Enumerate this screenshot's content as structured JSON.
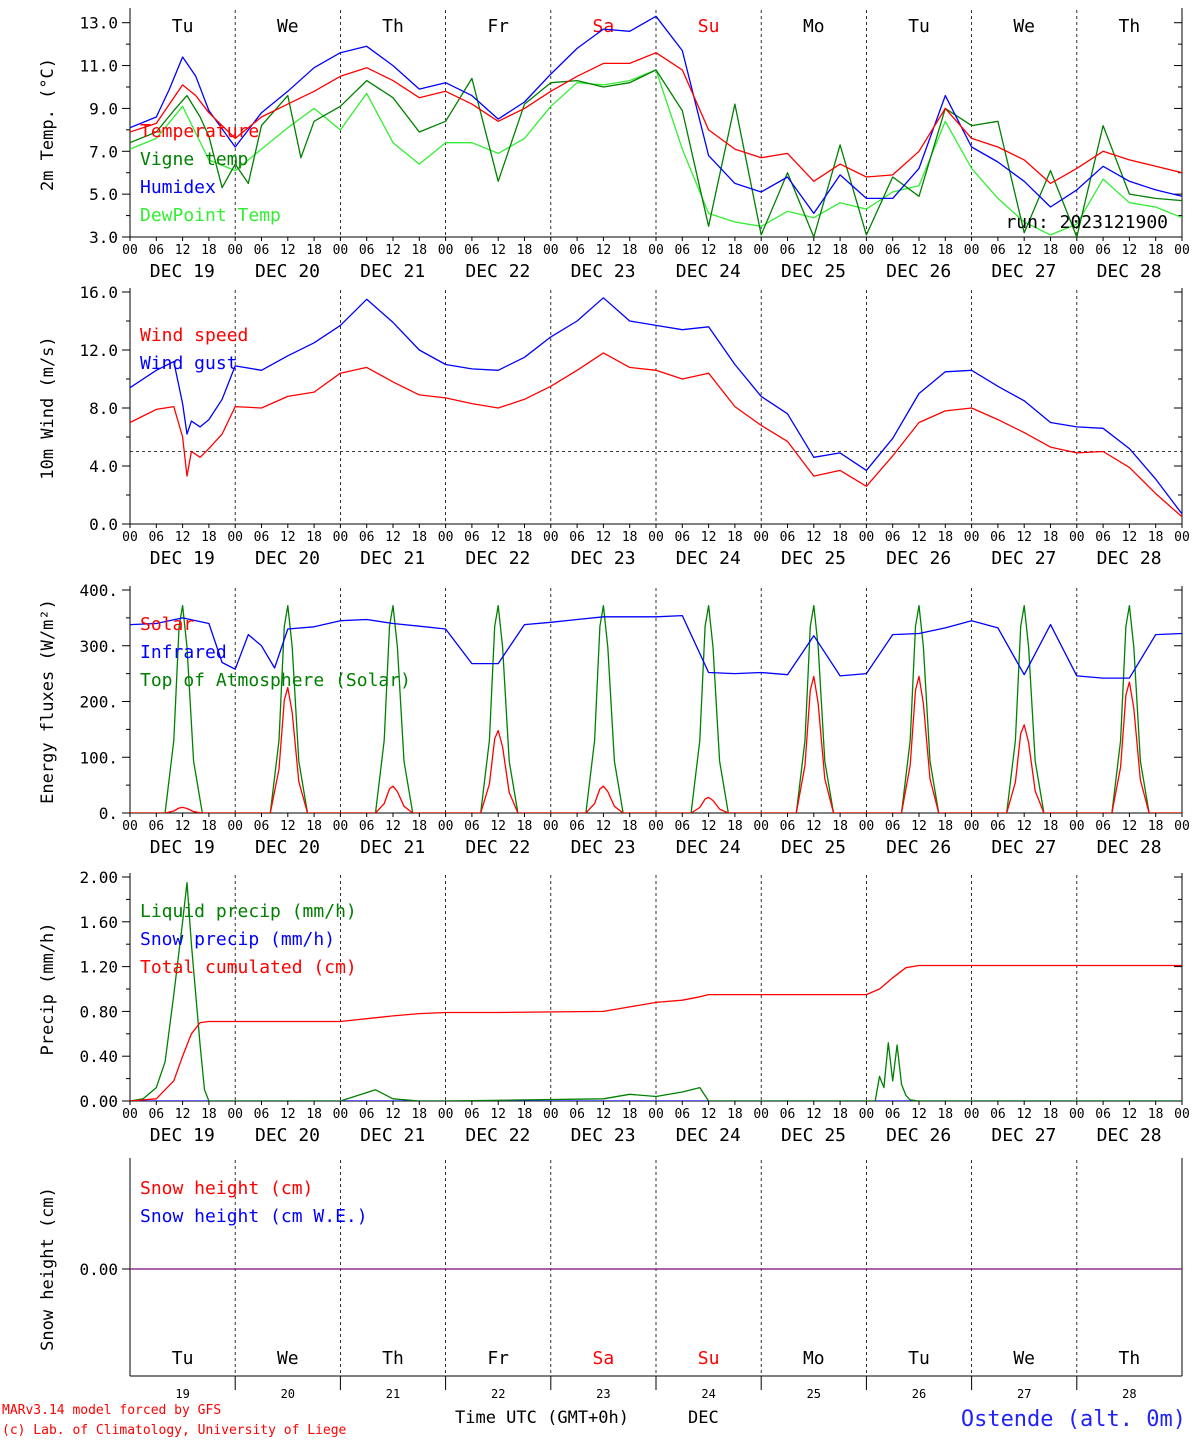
{
  "page": {
    "run_label": "run: 2023121900",
    "footer": {
      "model": "MARv3.14 model forced by GFS",
      "copyright": "(c) Lab. of Climatology, University of Liege",
      "xlabel": "Time UTC (GMT+0h)",
      "month": "DEC",
      "station": "Ostende (alt. 0m)"
    },
    "days": [
      {
        "date": "DEC 19",
        "dow": "Tu",
        "num": "19",
        "weekend": false
      },
      {
        "date": "DEC 20",
        "dow": "We",
        "num": "20",
        "weekend": false
      },
      {
        "date": "DEC 21",
        "dow": "Th",
        "num": "21",
        "weekend": false
      },
      {
        "date": "DEC 22",
        "dow": "Fr",
        "num": "22",
        "weekend": false
      },
      {
        "date": "DEC 23",
        "dow": "Sa",
        "num": "23",
        "weekend": true
      },
      {
        "date": "DEC 24",
        "dow": "Su",
        "num": "24",
        "weekend": true
      },
      {
        "date": "DEC 25",
        "dow": "Mo",
        "num": "25",
        "weekend": false
      },
      {
        "date": "DEC 26",
        "dow": "Tu",
        "num": "26",
        "weekend": false
      },
      {
        "date": "DEC 27",
        "dow": "We",
        "num": "27",
        "weekend": false
      },
      {
        "date": "DEC 28",
        "dow": "Th",
        "num": "28",
        "weekend": false
      }
    ],
    "hour_ticks": [
      "00",
      "06",
      "12",
      "18"
    ],
    "end_tick": "00",
    "weekend_color": "#ff0000"
  },
  "chart_data": [
    {
      "id": "temp",
      "type": "line",
      "ylabel": "2m Temp. (°C)",
      "ylim": [
        3,
        13.5
      ],
      "ticks": [
        {
          "v": 3,
          "label": "3.0"
        },
        {
          "v": 5,
          "label": "5.0"
        },
        {
          "v": 7,
          "label": "7.0"
        },
        {
          "v": 9,
          "label": "9.0"
        },
        {
          "v": 11,
          "label": "11.0"
        },
        {
          "v": 13,
          "label": "13.0"
        }
      ],
      "x_unit": "hours since DEC 19 00 UTC",
      "series": [
        {
          "name": "Temperature",
          "color": "#ff0000",
          "x": [
            0,
            6,
            9,
            12,
            15,
            18,
            24,
            30,
            36,
            42,
            48,
            54,
            60,
            66,
            72,
            78,
            84,
            90,
            96,
            102,
            108,
            114,
            120,
            126,
            132,
            138,
            144,
            150,
            156,
            162,
            168,
            174,
            180,
            186,
            192,
            198,
            204,
            210,
            216,
            222,
            228,
            234,
            240
          ],
          "values": [
            7.9,
            8.3,
            9.2,
            10.1,
            9.6,
            8.8,
            7.6,
            8.6,
            9.2,
            9.8,
            10.5,
            10.9,
            10.3,
            9.5,
            9.8,
            9.2,
            8.4,
            9.0,
            9.8,
            10.5,
            11.1,
            11.1,
            11.6,
            10.8,
            8.0,
            7.1,
            6.7,
            6.9,
            5.6,
            6.4,
            5.8,
            5.9,
            7.0,
            9.0,
            7.6,
            7.2,
            6.6,
            5.5,
            6.2,
            7.0,
            6.6,
            6.3,
            6.0
          ]
        },
        {
          "name": "Vigne temp",
          "color": "#008000",
          "x": [
            0,
            6,
            10,
            13,
            16,
            18,
            21,
            24,
            27,
            30,
            36,
            39,
            42,
            48,
            54,
            60,
            66,
            72,
            78,
            84,
            90,
            96,
            102,
            108,
            114,
            120,
            126,
            132,
            138,
            144,
            150,
            156,
            162,
            168,
            174,
            180,
            186,
            192,
            198,
            204,
            210,
            216,
            222,
            228,
            234,
            240
          ],
          "values": [
            7.4,
            7.9,
            8.9,
            9.6,
            8.6,
            7.7,
            5.3,
            6.4,
            5.5,
            8.2,
            9.6,
            6.7,
            8.4,
            9.1,
            10.3,
            9.5,
            7.9,
            8.4,
            10.4,
            5.6,
            9.2,
            10.2,
            10.3,
            10.0,
            10.2,
            10.8,
            8.9,
            3.5,
            9.2,
            3.1,
            6.0,
            3.0,
            7.3,
            3.1,
            5.8,
            4.9,
            9.0,
            8.2,
            8.4,
            3.2,
            6.1,
            3.0,
            8.2,
            5.0,
            4.8,
            4.7
          ]
        },
        {
          "name": "Humidex",
          "color": "#0000ff",
          "x": [
            0,
            6,
            9,
            12,
            15,
            18,
            24,
            30,
            36,
            42,
            48,
            54,
            60,
            66,
            72,
            78,
            84,
            90,
            96,
            102,
            108,
            114,
            120,
            126,
            132,
            138,
            144,
            150,
            156,
            162,
            168,
            174,
            180,
            186,
            192,
            198,
            204,
            210,
            216,
            222,
            228,
            234,
            240
          ],
          "values": [
            8.1,
            8.6,
            9.9,
            11.4,
            10.5,
            8.9,
            7.2,
            8.8,
            9.8,
            10.9,
            11.6,
            11.9,
            11.0,
            9.9,
            10.2,
            9.6,
            8.5,
            9.3,
            10.6,
            11.8,
            12.7,
            12.6,
            13.3,
            11.7,
            6.8,
            5.5,
            5.1,
            5.8,
            4.1,
            5.9,
            4.8,
            4.8,
            6.2,
            9.6,
            7.2,
            6.5,
            5.6,
            4.4,
            5.2,
            6.3,
            5.6,
            5.2,
            4.9
          ]
        },
        {
          "name": "DewPoint Temp",
          "color": "#33ee33",
          "x": [
            0,
            6,
            12,
            18,
            24,
            30,
            36,
            42,
            48,
            54,
            60,
            66,
            72,
            78,
            84,
            90,
            96,
            102,
            108,
            114,
            120,
            126,
            132,
            138,
            144,
            150,
            156,
            162,
            168,
            174,
            180,
            186,
            192,
            198,
            204,
            210,
            216,
            222,
            228,
            234,
            240
          ],
          "values": [
            7.1,
            7.6,
            9.1,
            6.6,
            6.1,
            7.1,
            8.1,
            9.0,
            8.0,
            9.7,
            7.4,
            6.4,
            7.4,
            7.4,
            6.9,
            7.6,
            9.1,
            10.2,
            10.1,
            10.3,
            10.8,
            7.1,
            4.1,
            3.7,
            3.5,
            4.2,
            3.9,
            4.6,
            4.3,
            5.1,
            5.4,
            8.4,
            6.2,
            4.8,
            3.7,
            3.1,
            3.6,
            5.7,
            4.6,
            4.4,
            3.9
          ]
        }
      ]
    },
    {
      "id": "wind",
      "type": "line",
      "ylabel": "10m Wind (m/s)",
      "ylim": [
        0,
        16
      ],
      "ticks": [
        {
          "v": 0,
          "label": "0.0"
        },
        {
          "v": 4,
          "label": "4.0"
        },
        {
          "v": 8,
          "label": "8.0"
        },
        {
          "v": 12,
          "label": "12.0"
        },
        {
          "v": 16,
          "label": "16.0"
        }
      ],
      "reference_line": 5,
      "x_unit": "hours since DEC 19 00 UTC",
      "series": [
        {
          "name": "Wind speed",
          "color": "#ff0000",
          "x": [
            0,
            6,
            10,
            12,
            13,
            14,
            16,
            18,
            21,
            24,
            30,
            36,
            42,
            48,
            54,
            60,
            66,
            72,
            78,
            84,
            90,
            96,
            102,
            108,
            114,
            120,
            126,
            132,
            138,
            144,
            150,
            156,
            162,
            168,
            174,
            180,
            186,
            192,
            198,
            204,
            210,
            216,
            222,
            228,
            234,
            240
          ],
          "values": [
            7.0,
            7.9,
            8.1,
            6.0,
            3.3,
            5.0,
            4.6,
            5.2,
            6.2,
            8.1,
            8.0,
            8.8,
            9.1,
            10.4,
            10.8,
            9.8,
            8.9,
            8.7,
            8.3,
            8.0,
            8.6,
            9.5,
            10.6,
            11.8,
            10.8,
            10.6,
            10.0,
            10.4,
            8.1,
            6.8,
            5.7,
            3.3,
            3.7,
            2.6,
            4.7,
            7.0,
            7.8,
            8.0,
            7.2,
            6.3,
            5.3,
            4.9,
            5.0,
            3.9,
            2.1,
            0.5
          ]
        },
        {
          "name": "Wind gust",
          "color": "#0000ff",
          "x": [
            0,
            6,
            10,
            12,
            13,
            14,
            16,
            18,
            21,
            24,
            30,
            36,
            42,
            48,
            54,
            60,
            66,
            72,
            78,
            84,
            90,
            96,
            102,
            108,
            114,
            120,
            126,
            132,
            138,
            144,
            150,
            156,
            162,
            168,
            174,
            180,
            186,
            192,
            198,
            204,
            210,
            216,
            222,
            228,
            234,
            240
          ],
          "values": [
            9.4,
            10.6,
            11.2,
            8.3,
            6.2,
            7.1,
            6.7,
            7.2,
            8.6,
            10.9,
            10.6,
            11.6,
            12.5,
            13.7,
            15.5,
            13.9,
            12.0,
            11.0,
            10.7,
            10.6,
            11.5,
            12.9,
            14.0,
            15.6,
            14.0,
            13.7,
            13.4,
            13.6,
            11.0,
            8.8,
            7.6,
            4.6,
            4.9,
            3.7,
            5.9,
            9.0,
            10.5,
            10.6,
            9.5,
            8.5,
            7.0,
            6.7,
            6.6,
            5.2,
            3.1,
            0.7
          ]
        }
      ]
    },
    {
      "id": "energy",
      "type": "line",
      "ylabel": "Energy fluxes (W/m²)",
      "ylim": [
        0,
        400
      ],
      "ticks": [
        {
          "v": 0,
          "label": "0."
        },
        {
          "v": 100,
          "label": "100."
        },
        {
          "v": 200,
          "label": "200."
        },
        {
          "v": 300,
          "label": "300."
        },
        {
          "v": 400,
          "label": "400."
        }
      ],
      "x_unit": "hours since DEC 19 00 UTC",
      "series": [
        {
          "name": "Solar",
          "color": "#ff0000",
          "day_peaks": [
            10,
            225,
            48,
            148,
            48,
            28,
            245,
            245,
            158,
            235
          ],
          "rise_hour": 8,
          "set_hour": 16.5,
          "noon_hour": 12
        },
        {
          "name": "Infrared",
          "color": "#0000ff",
          "x": [
            0,
            6,
            12,
            18,
            21,
            24,
            27,
            30,
            33,
            36,
            42,
            48,
            54,
            60,
            66,
            72,
            78,
            84,
            90,
            96,
            102,
            108,
            114,
            120,
            126,
            132,
            138,
            144,
            150,
            156,
            162,
            168,
            174,
            180,
            186,
            192,
            198,
            204,
            210,
            216,
            222,
            228,
            234,
            240
          ],
          "values": [
            338,
            340,
            350,
            340,
            270,
            258,
            320,
            300,
            260,
            330,
            334,
            345,
            347,
            340,
            335,
            330,
            268,
            268,
            338,
            342,
            347,
            352,
            352,
            352,
            354,
            252,
            250,
            252,
            248,
            318,
            246,
            250,
            320,
            322,
            332,
            345,
            332,
            248,
            338,
            246,
            242,
            242,
            320,
            322
          ]
        },
        {
          "name": "Top of Atmosphere (Solar)",
          "color": "#008000",
          "day_peaks": [
            372,
            372,
            372,
            372,
            372,
            372,
            372,
            372,
            372,
            372
          ],
          "rise_hour": 8,
          "set_hour": 16.5,
          "noon_hour": 12
        }
      ]
    },
    {
      "id": "precip",
      "type": "line",
      "ylabel": "Precip (mm/h)",
      "ylim": [
        0,
        2
      ],
      "ticks": [
        {
          "v": 0,
          "label": "0.00"
        },
        {
          "v": 0.4,
          "label": "0.40"
        },
        {
          "v": 0.8,
          "label": "0.80"
        },
        {
          "v": 1.2,
          "label": "1.20"
        },
        {
          "v": 1.6,
          "label": "1.60"
        },
        {
          "v": 2.0,
          "label": "2.00"
        }
      ],
      "x_unit": "hours since DEC 19 00 UTC",
      "series": [
        {
          "name": "Liquid precip (mm/h)",
          "color": "#008000",
          "x": [
            0,
            3,
            6,
            8,
            10,
            12,
            13,
            14,
            16,
            17,
            18,
            24,
            48,
            56,
            58,
            60,
            66,
            72,
            108,
            114,
            120,
            126,
            130,
            132,
            170,
            171,
            172,
            173,
            174,
            175,
            176,
            177,
            178,
            180,
            240
          ],
          "values": [
            0,
            0.02,
            0.12,
            0.35,
            0.95,
            1.6,
            1.95,
            1.4,
            0.5,
            0.1,
            0,
            0,
            0,
            0.1,
            0.06,
            0.02,
            0,
            0,
            0.02,
            0.06,
            0.04,
            0.08,
            0.12,
            0,
            0,
            0.22,
            0.12,
            0.52,
            0.18,
            0.5,
            0.15,
            0.05,
            0.01,
            0,
            0
          ]
        },
        {
          "name": "Snow precip (mm/h)",
          "color": "#0000ff",
          "x": [
            0,
            240
          ],
          "values": [
            0,
            0
          ]
        },
        {
          "name": "Total cumulated (cm)",
          "color": "#ff0000",
          "x": [
            0,
            6,
            10,
            12,
            14,
            16,
            18,
            24,
            48,
            60,
            66,
            72,
            84,
            108,
            114,
            120,
            126,
            130,
            132,
            168,
            171,
            174,
            177,
            180,
            240
          ],
          "values": [
            0,
            0.02,
            0.18,
            0.4,
            0.6,
            0.7,
            0.71,
            0.71,
            0.71,
            0.76,
            0.78,
            0.79,
            0.79,
            0.8,
            0.84,
            0.88,
            0.9,
            0.93,
            0.95,
            0.95,
            1.0,
            1.1,
            1.19,
            1.21,
            1.21
          ]
        }
      ]
    },
    {
      "id": "snow",
      "type": "line",
      "ylabel": "Snow height (cm)",
      "ylim": [
        -1,
        1
      ],
      "ticks": [
        {
          "v": 0,
          "label": "0.00"
        }
      ],
      "x_unit": "hours since DEC 19 00 UTC",
      "series": [
        {
          "name": "Snow height (cm)",
          "color": "#ff0000",
          "x": [
            0,
            240
          ],
          "values": [
            0,
            0
          ]
        },
        {
          "name": "Snow height (cm W.E.)",
          "color": "#0000ff",
          "x": [
            0,
            240
          ],
          "values": [
            0,
            0
          ]
        }
      ]
    }
  ]
}
